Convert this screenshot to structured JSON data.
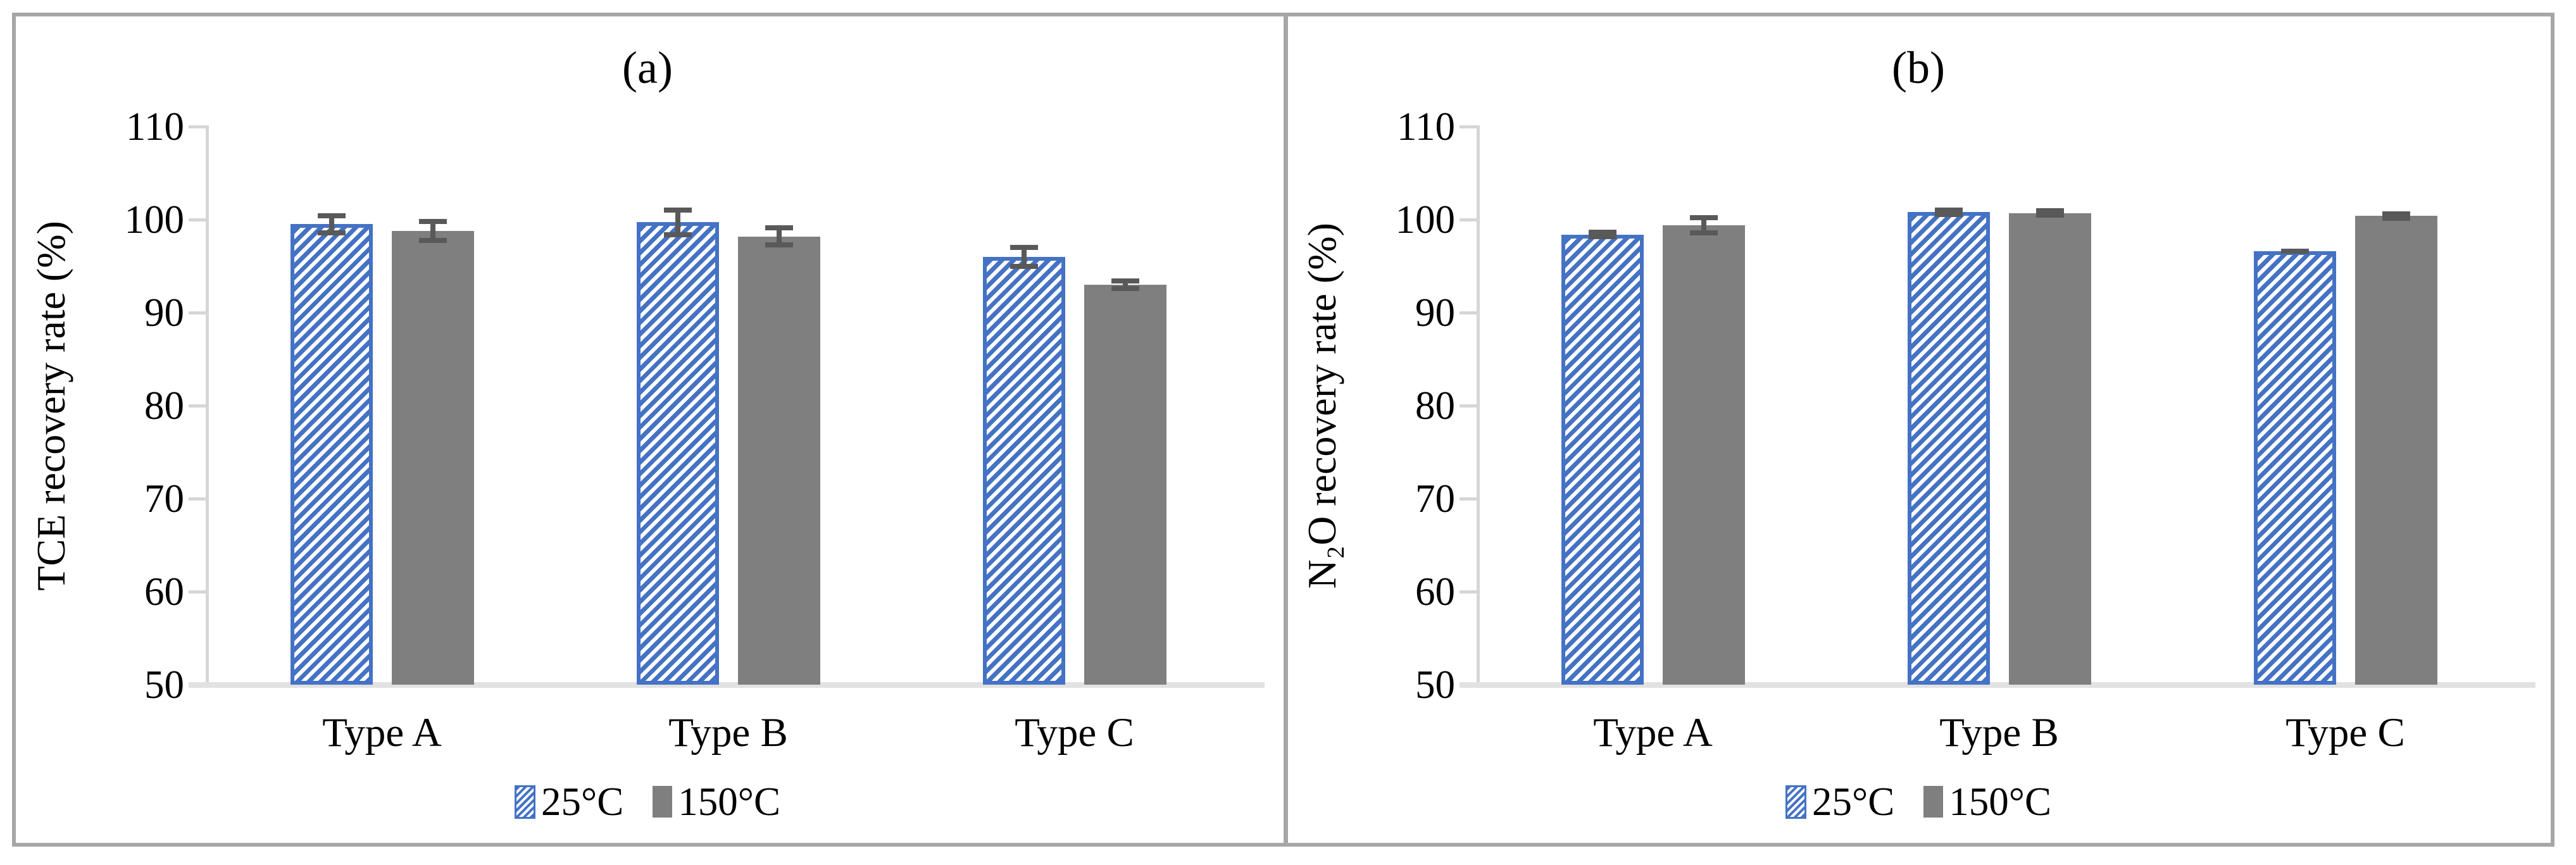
{
  "figure": {
    "background": "#ffffff",
    "border_color": "#a6a6a6",
    "colors": {
      "bar_blue": "#4472C4",
      "bar_gray": "#7f7f7f",
      "axis_line": "#d6d6d6",
      "baseline": "#e2e2e2",
      "error_bar": "#595959"
    }
  },
  "chart_data": [
    {
      "type": "bar",
      "panel_label": "(a)",
      "ylabel": "TCE recovery rate (%)",
      "xlabel": "",
      "categories": [
        "Type A",
        "Type B",
        "Type C"
      ],
      "series": [
        {
          "name": "25°C",
          "style": "hatched-blue",
          "values": [
            99.5,
            99.7,
            96.0
          ],
          "errors": [
            1.2,
            1.6,
            1.3
          ]
        },
        {
          "name": "150°C",
          "style": "solid-gray",
          "values": [
            98.8,
            98.2,
            93.0
          ],
          "errors": [
            1.3,
            1.2,
            0.7
          ]
        }
      ],
      "ylim": [
        50,
        110
      ],
      "yticks": [
        50,
        60,
        70,
        80,
        90,
        100,
        110
      ],
      "grid": false,
      "legend_position": "bottom"
    },
    {
      "type": "bar",
      "panel_label": "(b)",
      "ylabel": "N₂O recovery rate (%)",
      "xlabel": "",
      "categories": [
        "Type A",
        "Type B",
        "Type C"
      ],
      "series": [
        {
          "name": "25°C",
          "style": "hatched-blue",
          "values": [
            98.4,
            100.8,
            96.6
          ],
          "errors": [
            0.5,
            0.5,
            0.3
          ]
        },
        {
          "name": "150°C",
          "style": "solid-gray",
          "values": [
            99.4,
            100.7,
            100.4
          ],
          "errors": [
            1.1,
            0.5,
            0.5
          ]
        }
      ],
      "ylim": [
        50,
        110
      ],
      "yticks": [
        50,
        60,
        70,
        80,
        90,
        100,
        110
      ],
      "grid": false,
      "legend_position": "bottom"
    }
  ]
}
